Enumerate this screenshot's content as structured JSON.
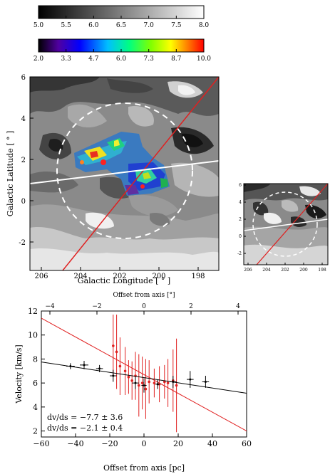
{
  "colorbar_gray": {
    "ticks": [
      "5.0",
      "5.5",
      "6.0",
      "6.5",
      "7.0",
      "7.5",
      "8.0"
    ],
    "colors": [
      "#000000",
      "#ffffff"
    ]
  },
  "colorbar_color": {
    "ticks": [
      "2.0",
      "3.3",
      "4.7",
      "6.0",
      "7.3",
      "8.7",
      "10.0"
    ],
    "colors": [
      "#000000",
      "#5000a0",
      "#0000ff",
      "#00c0ff",
      "#00ff80",
      "#80ff00",
      "#ffff00",
      "#ff8000",
      "#ff0000"
    ]
  },
  "main_map": {
    "xlabel": "Galactic Longitude [ ° ]",
    "ylabel": "Galactic Latitude [ ° ]",
    "xticks": [
      "206",
      "204",
      "202",
      "200",
      "198"
    ],
    "yticks": [
      "6",
      "4",
      "2",
      "0",
      "-2"
    ]
  },
  "small_map": {
    "xticks": [
      "206",
      "204",
      "202",
      "200",
      "198"
    ],
    "yticks": [
      "6",
      "4",
      "2",
      "0",
      "-2"
    ]
  },
  "colors": {
    "fit_red": "#e02020",
    "fit_black": "#000000",
    "circle": "#ffffff",
    "axis_line": "#ffffff"
  },
  "chart_data": {
    "type": "scatter",
    "xlabel": "Offset from axis [pc]",
    "ylabel": "Velocity [km/s]",
    "top_label": "Offset from axis [°]",
    "xlim": [
      -60,
      60
    ],
    "ylim": [
      1.5,
      12
    ],
    "xticks": [
      -60,
      -40,
      -20,
      0,
      20,
      40,
      60
    ],
    "yticks": [
      2,
      4,
      6,
      8,
      10,
      12
    ],
    "top_xticks": [
      -4,
      -2,
      0,
      2,
      4
    ],
    "annotations": [
      "dv/ds = −7.7 ± 3.6",
      "dv/ds = −2.1 ± 0.4"
    ],
    "series": [
      {
        "color": "#e02020",
        "points": [
          {
            "x": -18,
            "y": 9.1,
            "yerr": 2.6
          },
          {
            "x": -16,
            "y": 8.6,
            "yerr": 3.1
          },
          {
            "x": -14,
            "y": 7.4,
            "yerr": 2.4
          },
          {
            "x": -11,
            "y": 7.0,
            "yerr": 2.0
          },
          {
            "x": -9,
            "y": 6.5,
            "yerr": 1.4
          },
          {
            "x": -7,
            "y": 6.2,
            "yerr": 1.6
          },
          {
            "x": -5,
            "y": 6.6,
            "yerr": 2.0
          },
          {
            "x": -3,
            "y": 5.8,
            "yerr": 2.6
          },
          {
            "x": -1,
            "y": 6.0,
            "yerr": 2.2
          },
          {
            "x": 1,
            "y": 5.5,
            "yerr": 2.5
          },
          {
            "x": 3,
            "y": 6.1,
            "yerr": 1.8
          },
          {
            "x": 6,
            "y": 6.0,
            "yerr": 1.2
          },
          {
            "x": 9,
            "y": 5.9,
            "yerr": 1.5
          },
          {
            "x": 12,
            "y": 6.1,
            "yerr": 1.4
          },
          {
            "x": 14,
            "y": 6.0,
            "yerr": 2.0
          },
          {
            "x": 17,
            "y": 6.2,
            "yerr": 2.6
          },
          {
            "x": 19,
            "y": 5.8,
            "yerr": 3.9
          }
        ],
        "fit": [
          [
            -60,
            11.4
          ],
          [
            60,
            2.0
          ]
        ]
      },
      {
        "color": "#000000",
        "points": [
          {
            "x": -43,
            "y": 7.4,
            "xerr": 2.5,
            "yerr": 0.25
          },
          {
            "x": -35,
            "y": 7.5,
            "xerr": 2.5,
            "yerr": 0.35
          },
          {
            "x": -26,
            "y": 7.2,
            "xerr": 2.0,
            "yerr": 0.3
          },
          {
            "x": -18,
            "y": 6.6,
            "xerr": 2.0,
            "yerr": 0.5
          },
          {
            "x": -5,
            "y": 6.0,
            "xerr": 2.0,
            "yerr": 0.5
          },
          {
            "x": 0,
            "y": 5.8,
            "xerr": 1.5,
            "yerr": 0.6
          },
          {
            "x": 8,
            "y": 5.9,
            "xerr": 1.5,
            "yerr": 0.4
          },
          {
            "x": 17,
            "y": 6.1,
            "xerr": 2.0,
            "yerr": 0.5
          },
          {
            "x": 27,
            "y": 6.3,
            "xerr": 2.0,
            "yerr": 0.7
          },
          {
            "x": 36,
            "y": 6.1,
            "xerr": 2.0,
            "yerr": 0.5
          }
        ],
        "fit": [
          [
            -60,
            7.75
          ],
          [
            60,
            5.15
          ]
        ]
      }
    ]
  }
}
